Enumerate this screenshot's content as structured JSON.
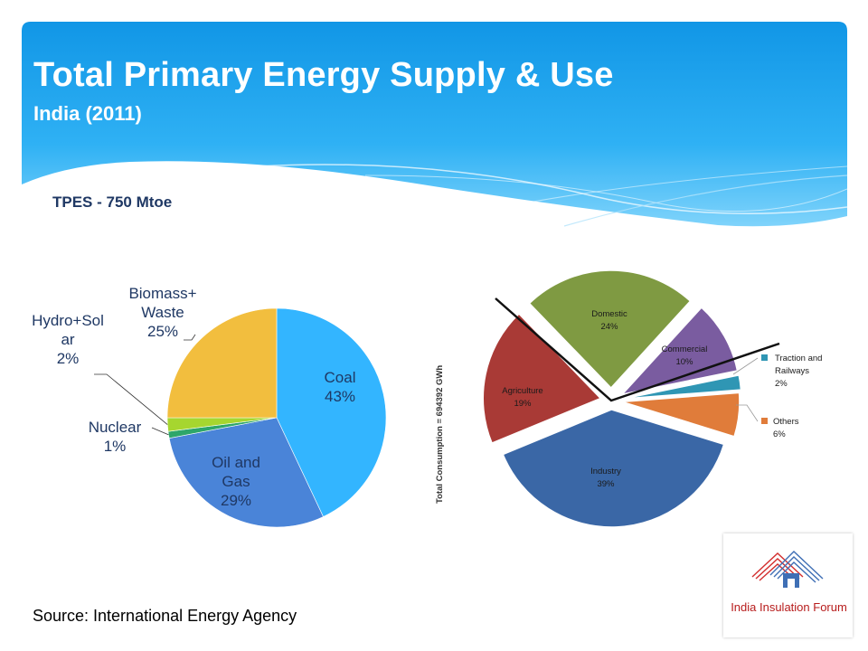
{
  "slide": {
    "title": "Total Primary Energy Supply & Use",
    "subtitle": "India (2011)",
    "tpes_label": "TPES - 750 Mtoe",
    "source": "Source: International Energy Agency",
    "logo_text": "India Insulation Forum"
  },
  "chart_data": [
    {
      "type": "pie",
      "title": "",
      "colors": [
        "#33b5ff",
        "#4a84d8",
        "#2ea66a",
        "#a6d62f",
        "#f2be3e"
      ],
      "slices": [
        {
          "name": "Coal",
          "value": 43,
          "label_lines": [
            "Coal",
            "43%"
          ]
        },
        {
          "name": "Oil and Gas",
          "value": 29,
          "label_lines": [
            "Oil and",
            "Gas",
            "29%"
          ]
        },
        {
          "name": "Nuclear",
          "value": 1,
          "label_lines": [
            "Nuclear",
            "1%"
          ]
        },
        {
          "name": "Hydro+Solar",
          "value": 2,
          "label_lines": [
            "Hydro+Sol",
            "ar",
            "2%"
          ]
        },
        {
          "name": "Biomass+Waste",
          "value": 25,
          "label_lines": [
            "Biomass+",
            "Waste",
            "25%"
          ]
        }
      ]
    },
    {
      "type": "pie",
      "ylabel": "Total Consumption = 694392 GWh",
      "colors": [
        "#7f9a42",
        "#7a5ca0",
        "#2f96b4",
        "#e07c3a",
        "#3a67a6",
        "#a93a36"
      ],
      "slices": [
        {
          "name": "Domestic",
          "value": 24,
          "label_lines": [
            "Domestic",
            "24%"
          ]
        },
        {
          "name": "Commercial",
          "value": 10,
          "label_lines": [
            "Commercial",
            "10%"
          ]
        },
        {
          "name": "Traction and Railways",
          "value": 2,
          "label_lines": [
            "Traction and",
            "Railways",
            "2%"
          ]
        },
        {
          "name": "Others",
          "value": 6,
          "label_lines": [
            "Others",
            "6%"
          ]
        },
        {
          "name": "Industry",
          "value": 39,
          "label_lines": [
            "Industry",
            "39%"
          ]
        },
        {
          "name": "Agriculture",
          "value": 19,
          "label_lines": [
            "Agriculture",
            "19%"
          ]
        }
      ]
    }
  ]
}
